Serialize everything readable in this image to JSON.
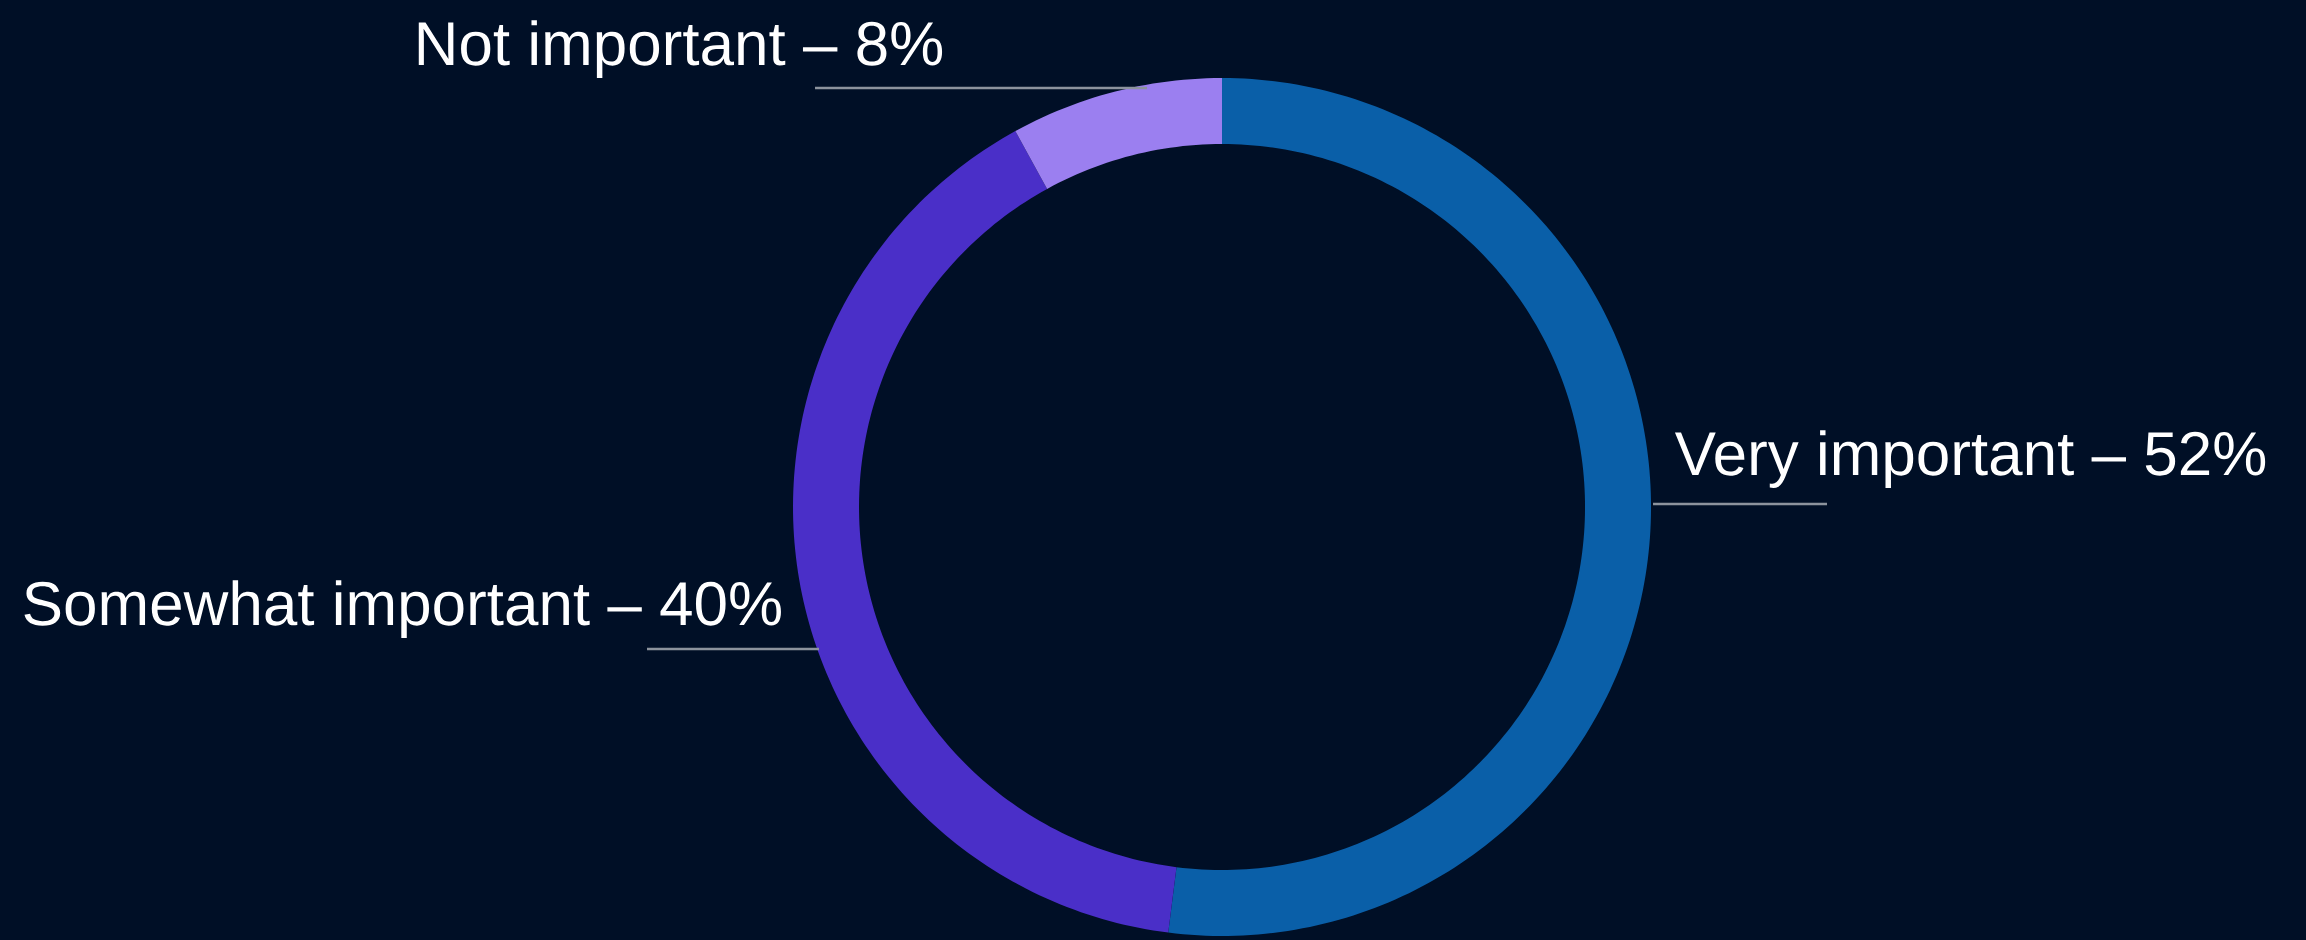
{
  "chart_data": {
    "type": "donut",
    "categories": [
      "Very important – 52%",
      "Somewhat important – 40%",
      "Not important – 8%"
    ],
    "values": [
      52,
      40,
      8
    ],
    "colors": [
      "#0a5fa8",
      "#4a2fc8",
      "#9b7ff0"
    ]
  }
}
